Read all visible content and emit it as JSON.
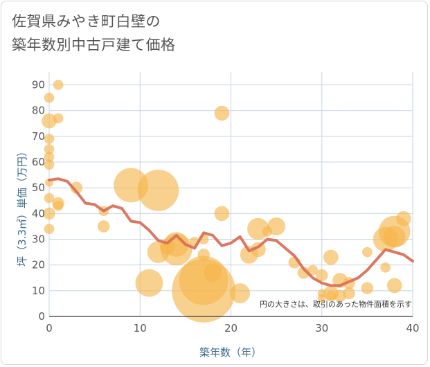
{
  "chart_data": {
    "type": "scatter",
    "title_lines": [
      "佐賀県みやき町白壁の",
      "築年数別中古戸建て価格"
    ],
    "xlabel": "築年数（年）",
    "ylabel": "坪（3.3㎡）単価（万円）",
    "xlim": [
      0,
      40
    ],
    "ylim": [
      0,
      95
    ],
    "x_ticks": [
      0,
      10,
      20,
      30,
      40
    ],
    "y_ticks": [
      0,
      10,
      20,
      30,
      40,
      50,
      60,
      70,
      80,
      90
    ],
    "grid": true,
    "note": "円の大きさは、取引のあった物件面積を示す",
    "colors": {
      "bubble": "#f5b54a",
      "trend": "#d9705a",
      "grid": "#c5d4e3",
      "axis_label": "#3d6b8c"
    },
    "bubbles": [
      {
        "x": 0,
        "y": 85,
        "size": 1
      },
      {
        "x": 0,
        "y": 76,
        "size": 1.5
      },
      {
        "x": 0,
        "y": 69,
        "size": 1
      },
      {
        "x": 0,
        "y": 65,
        "size": 1
      },
      {
        "x": 0,
        "y": 62,
        "size": 1
      },
      {
        "x": 0,
        "y": 59,
        "size": 1
      },
      {
        "x": 0,
        "y": 52,
        "size": 0.8
      },
      {
        "x": 0,
        "y": 46,
        "size": 1
      },
      {
        "x": 0,
        "y": 40,
        "size": 1.2
      },
      {
        "x": 0,
        "y": 34,
        "size": 1
      },
      {
        "x": 1,
        "y": 90,
        "size": 1
      },
      {
        "x": 1,
        "y": 77,
        "size": 1
      },
      {
        "x": 1,
        "y": 44,
        "size": 1.2
      },
      {
        "x": 1,
        "y": 43,
        "size": 1
      },
      {
        "x": 3,
        "y": 50,
        "size": 1.2
      },
      {
        "x": 6,
        "y": 41,
        "size": 1
      },
      {
        "x": 6,
        "y": 35,
        "size": 1.2
      },
      {
        "x": 9,
        "y": 51,
        "size": 3.5
      },
      {
        "x": 11,
        "y": 13,
        "size": 2.8
      },
      {
        "x": 12,
        "y": 49,
        "size": 4.2
      },
      {
        "x": 12,
        "y": 25,
        "size": 2.2
      },
      {
        "x": 13,
        "y": 27,
        "size": 1.5
      },
      {
        "x": 14,
        "y": 28,
        "size": 2.5
      },
      {
        "x": 14,
        "y": 26,
        "size": 3.2
      },
      {
        "x": 16,
        "y": 29,
        "size": 1
      },
      {
        "x": 17,
        "y": 30,
        "size": 1
      },
      {
        "x": 17,
        "y": 24,
        "size": 1.2
      },
      {
        "x": 17,
        "y": 14,
        "size": 5
      },
      {
        "x": 17,
        "y": 10,
        "size": 6.5
      },
      {
        "x": 18,
        "y": 17,
        "size": 1.8
      },
      {
        "x": 19,
        "y": 79,
        "size": 1.5
      },
      {
        "x": 19,
        "y": 40,
        "size": 1.5
      },
      {
        "x": 21,
        "y": 9,
        "size": 2
      },
      {
        "x": 22,
        "y": 24,
        "size": 1.8
      },
      {
        "x": 23,
        "y": 34,
        "size": 2.2
      },
      {
        "x": 23,
        "y": 26,
        "size": 1.5
      },
      {
        "x": 24,
        "y": 33,
        "size": 1
      },
      {
        "x": 25,
        "y": 35,
        "size": 1.8
      },
      {
        "x": 27,
        "y": 21,
        "size": 1.2
      },
      {
        "x": 28,
        "y": 17,
        "size": 1.2
      },
      {
        "x": 29,
        "y": 18,
        "size": 1
      },
      {
        "x": 30,
        "y": 16,
        "size": 1.2
      },
      {
        "x": 30,
        "y": 9,
        "size": 0.8
      },
      {
        "x": 30,
        "y": 7,
        "size": 0.8
      },
      {
        "x": 31,
        "y": 23,
        "size": 1.5
      },
      {
        "x": 31,
        "y": 9,
        "size": 1.5
      },
      {
        "x": 31,
        "y": 8,
        "size": 1
      },
      {
        "x": 32,
        "y": 14,
        "size": 1.5
      },
      {
        "x": 32,
        "y": 8,
        "size": 1.2
      },
      {
        "x": 33,
        "y": 13,
        "size": 1.2
      },
      {
        "x": 33,
        "y": 9,
        "size": 1.2
      },
      {
        "x": 35,
        "y": 25,
        "size": 1
      },
      {
        "x": 35,
        "y": 11,
        "size": 1.2
      },
      {
        "x": 37,
        "y": 30,
        "size": 2.5
      },
      {
        "x": 37,
        "y": 19,
        "size": 1
      },
      {
        "x": 38,
        "y": 33,
        "size": 3.2
      },
      {
        "x": 38,
        "y": 31,
        "size": 2.2
      },
      {
        "x": 38,
        "y": 12,
        "size": 1.5
      },
      {
        "x": 39,
        "y": 38,
        "size": 1.5
      }
    ],
    "trend": {
      "x": [
        0,
        1,
        2,
        3,
        4,
        5,
        6,
        7,
        8,
        9,
        10,
        11,
        12,
        13,
        14,
        15,
        16,
        17,
        18,
        19,
        20,
        21,
        22,
        23,
        24,
        25,
        26,
        27,
        28,
        29,
        30,
        31,
        32,
        33,
        34,
        35,
        36,
        37,
        38,
        39,
        40
      ],
      "y": [
        53,
        53.5,
        52.5,
        48.5,
        44,
        43.5,
        41,
        43,
        42,
        37,
        36.5,
        33.5,
        29.5,
        28.5,
        31.5,
        28,
        26.5,
        32.5,
        31.5,
        27.5,
        28.5,
        31,
        25.5,
        27,
        30,
        29.5,
        26.5,
        23.5,
        18.5,
        15,
        13,
        12,
        12,
        13.5,
        15,
        18,
        22,
        26,
        25,
        24,
        21.5
      ]
    }
  }
}
